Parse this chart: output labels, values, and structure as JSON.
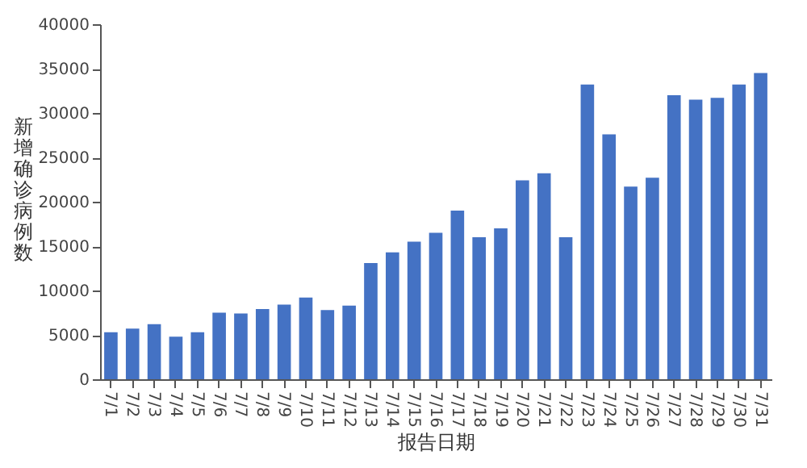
{
  "chart_data": {
    "type": "bar",
    "xlabel": "报告日期",
    "ylabel": "新增确诊病例数",
    "categories": [
      "7/1",
      "7/2",
      "7/3",
      "7/4",
      "7/5",
      "7/6",
      "7/7",
      "7/8",
      "7/9",
      "7/10",
      "7/11",
      "7/12",
      "7/13",
      "7/14",
      "7/15",
      "7/16",
      "7/17",
      "7/18",
      "7/19",
      "7/20",
      "7/21",
      "7/22",
      "7/23",
      "7/24",
      "7/25",
      "7/26",
      "7/27",
      "7/28",
      "7/29",
      "7/30",
      "7/31"
    ],
    "values": [
      5300,
      5700,
      6200,
      4800,
      5300,
      7500,
      7400,
      7900,
      8400,
      9200,
      7800,
      8300,
      13100,
      14300,
      15500,
      16500,
      19000,
      16000,
      17000,
      22400,
      23200,
      16000,
      33200,
      27600,
      21700,
      22700,
      32000,
      31500,
      31700,
      33200,
      34500
    ],
    "color": "#4472c4",
    "ylim": [
      0,
      40000
    ],
    "yticks": [
      0,
      5000,
      10000,
      15000,
      20000,
      25000,
      30000,
      35000,
      40000
    ],
    "grid": false
  }
}
